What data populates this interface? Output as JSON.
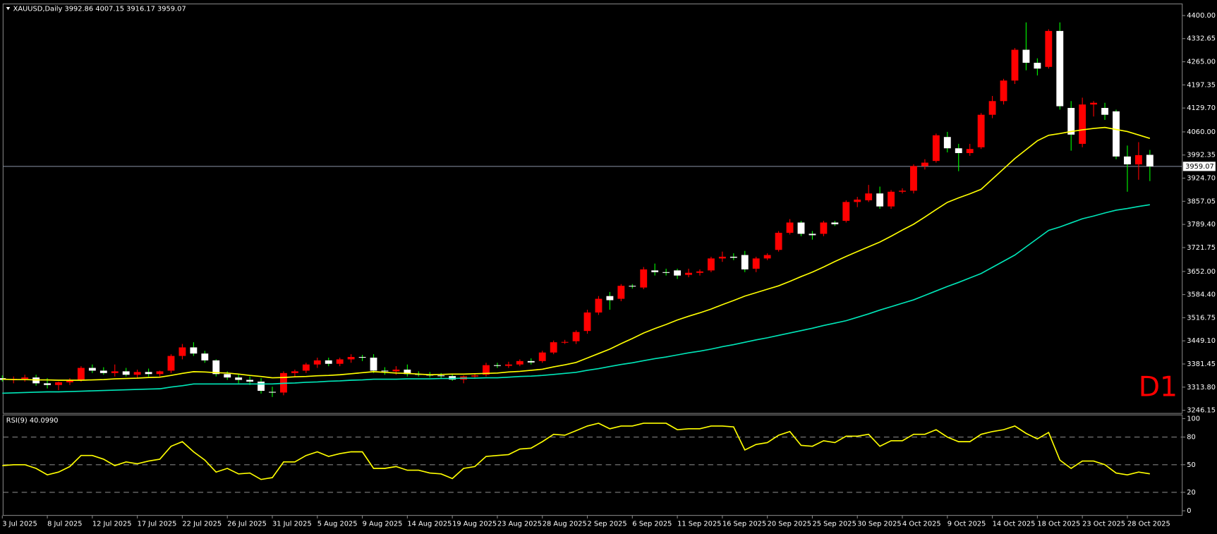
{
  "chart_data": [
    {
      "type": "candlestick",
      "title": "XAUUSD,Daily 3992.86 4007.15 3916.17 3959.07",
      "categories": [
        "3 Jul 2025",
        null,
        null,
        null,
        "8 Jul 2025",
        null,
        null,
        null,
        "12 Jul 2025",
        null,
        null,
        null,
        "17 Jul 2025",
        null,
        null,
        null,
        "22 Jul 2025",
        null,
        null,
        null,
        "26 Jul 2025",
        null,
        null,
        null,
        "31 Jul 2025",
        null,
        null,
        null,
        "5 Aug 2025",
        null,
        null,
        null,
        "9 Aug 2025",
        null,
        null,
        null,
        "14 Aug 2025",
        null,
        null,
        null,
        "19 Aug 2025",
        null,
        null,
        null,
        "23 Aug 2025",
        null,
        null,
        null,
        "28 Aug 2025",
        null,
        null,
        null,
        "2 Sep 2025",
        null,
        null,
        null,
        "6 Sep 2025",
        null,
        null,
        null,
        "11 Sep 2025",
        null,
        null,
        null,
        "16 Sep 2025",
        null,
        null,
        null,
        "20 Sep 2025",
        null,
        null,
        null,
        "25 Sep 2025",
        null,
        null,
        null,
        "30 Sep 2025",
        null,
        null,
        null,
        "4 Oct 2025",
        null,
        null,
        null,
        "9 Oct 2025",
        null,
        null,
        null,
        "14 Oct 2025",
        null,
        null,
        null,
        "18 Oct 2025",
        null,
        null,
        null,
        "23 Oct 2025",
        null,
        null,
        null,
        "28 Oct 2025",
        null,
        null
      ],
      "open": [
        3340,
        3335,
        3338,
        3342,
        3325,
        3320,
        3328,
        3335,
        3370,
        3362,
        3355,
        3360,
        3350,
        3358,
        3352,
        3362,
        3405,
        3430,
        3412,
        3392,
        3352,
        3342,
        3335,
        3330,
        3300,
        3298,
        3355,
        3362,
        3380,
        3392,
        3382,
        3395,
        3402,
        3400,
        3362,
        3360,
        3365,
        3352,
        3350,
        3348,
        3346,
        3336,
        3345,
        3350,
        3378,
        3376,
        3380,
        3390,
        3390,
        3415,
        3445,
        3448,
        3478,
        3532,
        3580,
        3572,
        3610,
        3605,
        3655,
        3650,
        3655,
        3642,
        3648,
        3655,
        3690,
        3695,
        3700,
        3660,
        3690,
        3715,
        3765,
        3795,
        3762,
        3762,
        3795,
        3800,
        3855,
        3860,
        3880,
        3842,
        3885,
        3888,
        3960,
        3975,
        4045,
        4012,
        3998,
        4015,
        4110,
        4150,
        4210,
        4300,
        4262,
        4250,
        4355,
        4130,
        4025,
        4140,
        4130,
        4120,
        3988,
        3965,
        3992.86
      ],
      "high": [
        3348,
        3345,
        3350,
        3350,
        3340,
        3330,
        3340,
        3375,
        3380,
        3372,
        3380,
        3370,
        3365,
        3368,
        3362,
        3410,
        3440,
        3445,
        3420,
        3395,
        3360,
        3352,
        3345,
        3340,
        3315,
        3360,
        3365,
        3385,
        3400,
        3400,
        3400,
        3410,
        3408,
        3410,
        3372,
        3375,
        3380,
        3360,
        3358,
        3355,
        3352,
        3348,
        3352,
        3385,
        3385,
        3388,
        3395,
        3398,
        3420,
        3450,
        3452,
        3480,
        3540,
        3580,
        3592,
        3615,
        3615,
        3665,
        3675,
        3660,
        3660,
        3660,
        3658,
        3695,
        3710,
        3705,
        3712,
        3695,
        3705,
        3770,
        3805,
        3800,
        3770,
        3800,
        3800,
        3860,
        3870,
        3905,
        3900,
        3890,
        3895,
        3965,
        3980,
        4055,
        4060,
        4025,
        4025,
        4115,
        4165,
        4215,
        4305,
        4380,
        4275,
        4360,
        4380,
        4150,
        4160,
        4150,
        4145,
        4125,
        4020,
        4030,
        4007.15
      ],
      "low": [
        3330,
        3325,
        3330,
        3318,
        3310,
        3305,
        3320,
        3330,
        3355,
        3350,
        3345,
        3345,
        3340,
        3345,
        3345,
        3355,
        3395,
        3405,
        3385,
        3345,
        3335,
        3325,
        3320,
        3295,
        3285,
        3290,
        3345,
        3355,
        3370,
        3375,
        3375,
        3385,
        3390,
        3355,
        3350,
        3350,
        3345,
        3345,
        3342,
        3338,
        3332,
        3325,
        3338,
        3345,
        3370,
        3370,
        3375,
        3380,
        3385,
        3410,
        3440,
        3440,
        3470,
        3525,
        3540,
        3565,
        3602,
        3600,
        3640,
        3640,
        3630,
        3635,
        3640,
        3650,
        3680,
        3685,
        3650,
        3650,
        3685,
        3710,
        3760,
        3755,
        3745,
        3755,
        3785,
        3795,
        3840,
        3855,
        3835,
        3835,
        3880,
        3880,
        3950,
        3970,
        4000,
        3945,
        3990,
        4010,
        4100,
        4140,
        4200,
        4240,
        4225,
        4245,
        4125,
        4005,
        4015,
        4105,
        4095,
        3980,
        3885,
        3920,
        3916.17
      ],
      "close": [
        3335,
        3338,
        3342,
        3325,
        3320,
        3328,
        3335,
        3370,
        3362,
        3355,
        3360,
        3350,
        3358,
        3352,
        3360,
        3405,
        3430,
        3412,
        3392,
        3352,
        3342,
        3335,
        3330,
        3303,
        3298,
        3355,
        3360,
        3380,
        3392,
        3382,
        3395,
        3402,
        3400,
        3362,
        3360,
        3365,
        3352,
        3350,
        3348,
        3346,
        3336,
        3345,
        3348,
        3378,
        3376,
        3380,
        3390,
        3386,
        3415,
        3445,
        3446,
        3475,
        3532,
        3572,
        3568,
        3610,
        3608,
        3658,
        3650,
        3648,
        3640,
        3648,
        3652,
        3690,
        3695,
        3692,
        3658,
        3690,
        3700,
        3765,
        3795,
        3762,
        3758,
        3795,
        3790,
        3855,
        3862,
        3880,
        3842,
        3885,
        3888,
        3960,
        3970,
        4050,
        4012,
        3998,
        4010,
        4110,
        4150,
        4210,
        4300,
        4262,
        4245,
        4355,
        4135,
        4052,
        4140,
        4145,
        4110,
        3988,
        3965,
        3992,
        3959.07
      ],
      "up_color": "#ff0000",
      "down_color": "#ffffff",
      "down_wick_color": "#00ff00",
      "lines": [
        {
          "color": "#ffff00",
          "values": [
            3337,
            3336,
            3336,
            3335,
            3335,
            3334,
            3334,
            3334,
            3335,
            3336,
            3338,
            3339,
            3340,
            3342,
            3343,
            3348,
            3354,
            3359,
            3358,
            3356,
            3355,
            3352,
            3348,
            3345,
            3341,
            3342,
            3344,
            3345,
            3347,
            3348,
            3350,
            3353,
            3356,
            3359,
            3357,
            3355,
            3354,
            3352,
            3350,
            3351,
            3352,
            3352,
            3353,
            3354,
            3355,
            3358,
            3360,
            3363,
            3366,
            3373,
            3379,
            3386,
            3399,
            3412,
            3425,
            3441,
            3456,
            3472,
            3485,
            3497,
            3510,
            3521,
            3531,
            3542,
            3555,
            3567,
            3580,
            3590,
            3600,
            3610,
            3623,
            3637,
            3650,
            3665,
            3681,
            3696,
            3710,
            3724,
            3738,
            3755,
            3773,
            3790,
            3811,
            3833,
            3854,
            3867,
            3879,
            3892,
            3922,
            3952,
            3982,
            4008,
            4034,
            4050,
            4055,
            4061,
            4066,
            4070,
            4073,
            4067,
            4061,
            4051,
            4041
          ]
        },
        {
          "color": "#00e6b8",
          "values": [
            3296,
            3297,
            3298,
            3299,
            3300,
            3300,
            3301,
            3302,
            3303,
            3304,
            3305,
            3306,
            3307,
            3308,
            3309,
            3314,
            3318,
            3323,
            3323,
            3323,
            3323,
            3323,
            3323,
            3323,
            3323,
            3325,
            3326,
            3328,
            3329,
            3331,
            3332,
            3334,
            3335,
            3337,
            3337,
            3337,
            3338,
            3338,
            3338,
            3339,
            3339,
            3340,
            3340,
            3341,
            3341,
            3343,
            3345,
            3346,
            3348,
            3351,
            3354,
            3357,
            3363,
            3368,
            3374,
            3380,
            3385,
            3391,
            3397,
            3402,
            3408,
            3414,
            3419,
            3425,
            3432,
            3438,
            3445,
            3452,
            3458,
            3465,
            3472,
            3479,
            3486,
            3494,
            3501,
            3508,
            3518,
            3528,
            3539,
            3549,
            3559,
            3569,
            3582,
            3595,
            3608,
            3620,
            3633,
            3646,
            3664,
            3682,
            3700,
            3724,
            3748,
            3772,
            3782,
            3794,
            3806,
            3814,
            3823,
            3831,
            3836,
            3842,
            3847
          ]
        }
      ],
      "last_price": 3959.07,
      "last_price_color": "#8a93a6",
      "ylim": [
        3237,
        4434
      ],
      "yticks": [
        {
          "value": 4400,
          "label": "4400.00"
        },
        {
          "value": 4332.65,
          "label": "4332.65"
        },
        {
          "value": 4265,
          "label": "4265.00"
        },
        {
          "value": 4197.35,
          "label": "4197.35"
        },
        {
          "value": 4129.7,
          "label": "4129.70"
        },
        {
          "value": 4060,
          "label": "4060.00"
        },
        {
          "value": 3992.35,
          "label": "3992.35"
        },
        {
          "value": 3924.7,
          "label": "3924.70"
        },
        {
          "value": 3857.05,
          "label": "3857.05"
        },
        {
          "value": 3789.4,
          "label": "3789.40"
        },
        {
          "value": 3721.75,
          "label": "3721.75"
        },
        {
          "value": 3652,
          "label": "3652.00"
        },
        {
          "value": 3584.4,
          "label": "3584.40"
        },
        {
          "value": 3516.75,
          "label": "3516.75"
        },
        {
          "value": 3449.1,
          "label": "3449.10"
        },
        {
          "value": 3381.45,
          "label": "3381.45"
        },
        {
          "value": 3313.8,
          "label": "3313.80"
        },
        {
          "value": 3246.15,
          "label": "3246.15"
        }
      ],
      "annotation": "D1",
      "annotation_color": "#ff0000"
    },
    {
      "type": "line",
      "title": "RSI(9) 40.0990",
      "values": [
        49,
        50,
        50,
        46,
        39,
        42,
        48,
        60,
        60,
        56,
        49,
        53,
        51,
        54,
        56,
        70,
        75,
        64,
        55,
        42,
        46,
        40,
        41,
        34,
        36,
        53,
        53,
        60,
        64,
        59,
        62,
        64,
        64,
        46,
        46,
        48,
        44,
        44,
        41,
        40,
        35,
        46,
        48,
        59,
        60,
        61,
        67,
        68,
        75,
        83,
        82,
        87,
        92,
        95,
        89,
        92,
        92,
        95,
        95,
        95,
        88,
        89,
        89,
        92,
        92,
        91,
        66,
        72,
        74,
        82,
        86,
        71,
        70,
        76,
        74,
        81,
        81,
        83,
        70,
        76,
        76,
        83,
        83,
        88,
        80,
        75,
        75,
        83,
        86,
        88,
        92,
        84,
        78,
        85,
        55,
        46,
        54,
        54,
        50,
        41,
        39,
        42,
        40.099
      ],
      "color": "#ffff00",
      "levels": [
        80,
        50,
        20
      ],
      "ylim": [
        -5,
        104
      ],
      "yticks": [
        100,
        80,
        50,
        20,
        0
      ]
    }
  ]
}
